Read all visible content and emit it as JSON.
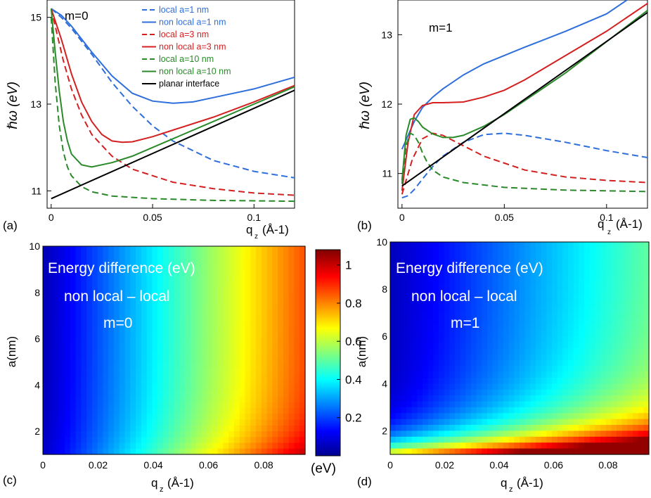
{
  "chart_data": [
    {
      "panel": "(a)",
      "type": "line",
      "annotation": "m=0",
      "xlabel": "q",
      "xlabel_sub": "z",
      "xlabel_unit": "(Å-1)",
      "ylabel": "ℏω (eV)",
      "xlim": [
        -0.002,
        0.12
      ],
      "ylim": [
        10.6,
        15.4
      ],
      "xticks": [
        {
          "v": 0,
          "label": "0"
        },
        {
          "v": 0.05,
          "label": "0.05"
        },
        {
          "v": 0.1,
          "label": "0.1"
        }
      ],
      "yticks": [
        {
          "v": 11,
          "label": "11"
        },
        {
          "v": 13,
          "label": "13"
        },
        {
          "v": 15,
          "label": "15"
        }
      ],
      "legend_position": "top-right",
      "series": [
        {
          "name": "local a=1 nm",
          "color": "#2f6fdc",
          "style": "dashed",
          "x": [
            0,
            0.005,
            0.01,
            0.02,
            0.03,
            0.04,
            0.05,
            0.06,
            0.08,
            0.1,
            0.12
          ],
          "y": [
            15.2,
            15.0,
            14.75,
            14.15,
            13.5,
            12.95,
            12.5,
            12.15,
            11.7,
            11.45,
            11.3
          ]
        },
        {
          "name": "non local a=1 nm",
          "color": "#2f6fdc",
          "style": "solid",
          "x": [
            0,
            0.005,
            0.01,
            0.02,
            0.03,
            0.04,
            0.05,
            0.06,
            0.07,
            0.08,
            0.1,
            0.12
          ],
          "y": [
            15.2,
            15.05,
            14.8,
            14.2,
            13.65,
            13.25,
            13.07,
            13.02,
            13.05,
            13.15,
            13.35,
            13.62
          ]
        },
        {
          "name": "local a=3 nm",
          "color": "#d42020",
          "style": "dashed",
          "x": [
            0,
            0.003,
            0.006,
            0.01,
            0.015,
            0.02,
            0.03,
            0.04,
            0.06,
            0.08,
            0.1,
            0.12
          ],
          "y": [
            15.2,
            14.6,
            14.0,
            13.35,
            12.75,
            12.3,
            11.8,
            11.5,
            11.2,
            11.05,
            10.95,
            10.9
          ]
        },
        {
          "name": "non local a=3 nm",
          "color": "#d42020",
          "style": "solid",
          "x": [
            0,
            0.005,
            0.01,
            0.015,
            0.02,
            0.025,
            0.03,
            0.035,
            0.04,
            0.05,
            0.06,
            0.08,
            0.1,
            0.12
          ],
          "y": [
            15.2,
            14.5,
            13.7,
            13.05,
            12.6,
            12.3,
            12.15,
            12.12,
            12.13,
            12.25,
            12.4,
            12.7,
            13.05,
            13.43
          ]
        },
        {
          "name": "local a=10 nm",
          "color": "#2a8a2a",
          "style": "dashed",
          "x": [
            0,
            0.002,
            0.004,
            0.006,
            0.008,
            0.01,
            0.015,
            0.02,
            0.03,
            0.05,
            0.08,
            0.1,
            0.12
          ],
          "y": [
            15.0,
            13.5,
            12.5,
            11.9,
            11.55,
            11.35,
            11.1,
            10.98,
            10.88,
            10.82,
            10.78,
            10.77,
            10.76
          ]
        },
        {
          "name": "non local a=10 nm",
          "color": "#2a8a2a",
          "style": "solid",
          "x": [
            0,
            0.002,
            0.004,
            0.006,
            0.008,
            0.01,
            0.015,
            0.02,
            0.03,
            0.04,
            0.05,
            0.06,
            0.08,
            0.1,
            0.12
          ],
          "y": [
            15.2,
            14.2,
            13.3,
            12.6,
            12.15,
            11.85,
            11.6,
            11.55,
            11.65,
            11.8,
            12.0,
            12.2,
            12.6,
            13.0,
            13.4
          ]
        },
        {
          "name": "planar interface",
          "color": "#000000",
          "style": "solid",
          "x": [
            0,
            0.12
          ],
          "y": [
            10.82,
            13.32
          ]
        }
      ]
    },
    {
      "panel": "(b)",
      "type": "line",
      "annotation": "m=1",
      "xlabel": "q",
      "xlabel_sub": "z",
      "xlabel_unit": "(Å-1)",
      "ylabel": "ℏω (eV)",
      "xlim": [
        -0.002,
        0.12
      ],
      "ylim": [
        10.5,
        13.5
      ],
      "xticks": [
        {
          "v": 0,
          "label": "0"
        },
        {
          "v": 0.05,
          "label": "0.05"
        },
        {
          "v": 0.1,
          "label": "0.1"
        }
      ],
      "yticks": [
        {
          "v": 11,
          "label": "11"
        },
        {
          "v": 12,
          "label": "12"
        },
        {
          "v": 13,
          "label": "13"
        }
      ],
      "series": [
        {
          "name": "local a=1 nm",
          "color": "#2f6fdc",
          "style": "dashed",
          "x": [
            0,
            0.003,
            0.006,
            0.01,
            0.015,
            0.02,
            0.03,
            0.04,
            0.05,
            0.06,
            0.08,
            0.1,
            0.12
          ],
          "y": [
            10.65,
            10.68,
            10.77,
            10.92,
            11.1,
            11.25,
            11.45,
            11.56,
            11.58,
            11.55,
            11.45,
            11.33,
            11.23
          ]
        },
        {
          "name": "non local a=1 nm",
          "color": "#2f6fdc",
          "style": "solid",
          "x": [
            0,
            0.003,
            0.006,
            0.01,
            0.015,
            0.02,
            0.03,
            0.04,
            0.05,
            0.06,
            0.08,
            0.1,
            0.11
          ],
          "y": [
            11.35,
            11.55,
            11.75,
            11.95,
            12.1,
            12.22,
            12.42,
            12.58,
            12.7,
            12.82,
            13.05,
            13.3,
            13.5
          ]
        },
        {
          "name": "local a=3 nm",
          "color": "#d42020",
          "style": "dashed",
          "x": [
            0,
            0.005,
            0.01,
            0.015,
            0.02,
            0.03,
            0.04,
            0.06,
            0.08,
            0.1,
            0.12
          ],
          "y": [
            10.7,
            11.2,
            11.5,
            11.58,
            11.55,
            11.4,
            11.25,
            11.05,
            10.95,
            10.9,
            10.87
          ]
        },
        {
          "name": "non local a=3 nm",
          "color": "#d42020",
          "style": "solid",
          "x": [
            0,
            0.003,
            0.006,
            0.01,
            0.015,
            0.02,
            0.03,
            0.04,
            0.05,
            0.06,
            0.08,
            0.1,
            0.12
          ],
          "y": [
            10.75,
            11.45,
            11.85,
            11.98,
            12.02,
            12.02,
            12.03,
            12.1,
            12.2,
            12.35,
            12.7,
            13.05,
            13.45
          ]
        },
        {
          "name": "local a=10 nm",
          "color": "#2a8a2a",
          "style": "dashed",
          "x": [
            0,
            0.002,
            0.004,
            0.006,
            0.008,
            0.01,
            0.012,
            0.015,
            0.02,
            0.03,
            0.05,
            0.08,
            0.1,
            0.12
          ],
          "y": [
            10.85,
            11.4,
            11.58,
            11.55,
            11.45,
            11.3,
            11.18,
            11.05,
            10.95,
            10.87,
            10.8,
            10.76,
            10.75,
            10.74
          ]
        },
        {
          "name": "non local a=10 nm",
          "color": "#2a8a2a",
          "style": "solid",
          "x": [
            0,
            0.002,
            0.004,
            0.006,
            0.008,
            0.01,
            0.015,
            0.02,
            0.025,
            0.03,
            0.04,
            0.05,
            0.06,
            0.08,
            0.1,
            0.12
          ],
          "y": [
            10.9,
            11.55,
            11.78,
            11.8,
            11.75,
            11.67,
            11.57,
            11.52,
            11.52,
            11.55,
            11.68,
            11.85,
            12.05,
            12.45,
            12.9,
            13.35
          ]
        },
        {
          "name": "planar interface",
          "color": "#000000",
          "style": "solid",
          "x": [
            0,
            0.12
          ],
          "y": [
            10.82,
            13.32
          ]
        }
      ]
    },
    {
      "panel": "(c)",
      "type": "heatmap",
      "title_lines": [
        "Energy difference (eV)",
        "non local – local",
        "m=0"
      ],
      "xlabel": "q",
      "xlabel_sub": "z",
      "xlabel_unit": "(Å-1)",
      "ylabel": "a(nm)",
      "xlim": [
        0,
        0.095
      ],
      "ylim": [
        1,
        10
      ],
      "xticks": [
        0,
        0.02,
        0.04,
        0.06,
        0.08
      ],
      "yticks": [
        2,
        4,
        6,
        8,
        10
      ],
      "description": "Energy difference increases with q_z; near 0.05 eV at q_z=0 rising to about 0.85 eV at q_z≈0.095 Å-1, weakly dependent on a (slightly higher at small a)."
    },
    {
      "panel": "(d)",
      "type": "heatmap",
      "title_lines": [
        "Energy difference (eV)",
        "non local – local",
        "m=1"
      ],
      "xlabel": "q",
      "xlabel_sub": "z",
      "xlabel_unit": "(Å-1)",
      "ylabel": "a(nm)",
      "xlim": [
        0,
        0.095
      ],
      "ylim": [
        1,
        10
      ],
      "xticks": [
        0,
        0.02,
        0.04,
        0.06,
        0.08
      ],
      "yticks": [
        2,
        4,
        6,
        8,
        10
      ],
      "description": "Energy difference grows with q_z and strongly with decreasing a; maximum about 1.05 eV at a≈1 nm."
    }
  ],
  "colorbar": {
    "ticks": [
      0.2,
      0.4,
      0.6,
      0.8,
      1
    ],
    "range": [
      0,
      1.08
    ],
    "unit_label": "(eV)",
    "colormap": [
      "#00008f",
      "#0000ff",
      "#00ffff",
      "#ffff00",
      "#ff0000",
      "#800000"
    ]
  }
}
